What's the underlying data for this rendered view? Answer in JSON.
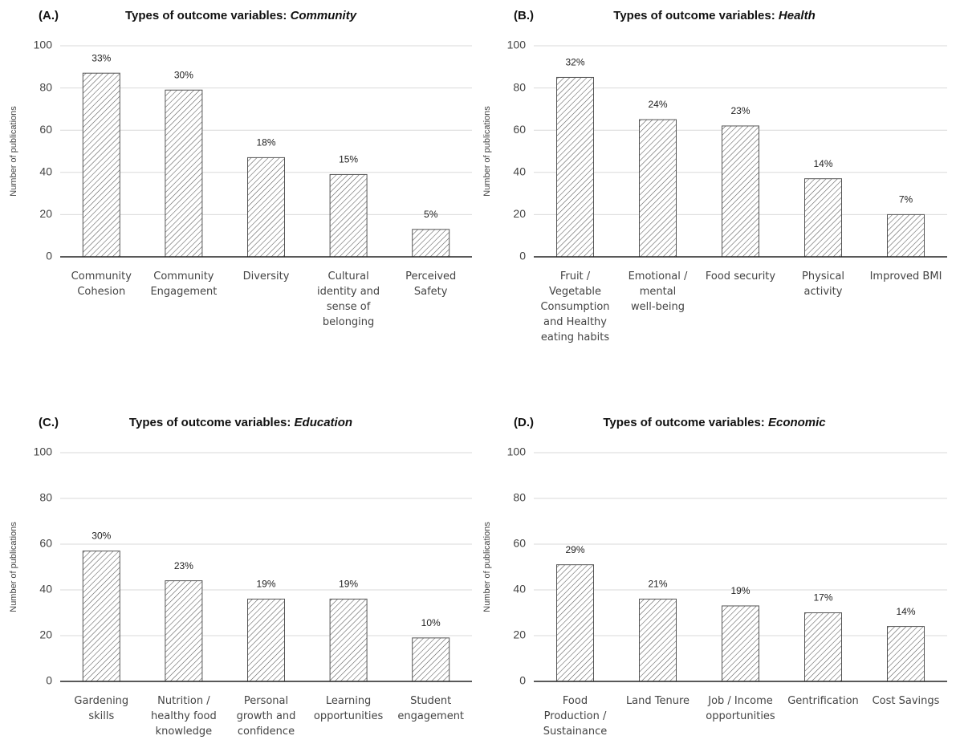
{
  "chart_data": [
    {
      "type": "bar",
      "panel": "(A.)",
      "title": "Types of outcome variables:",
      "title_emphasis": "Community",
      "ylabel": "Number of publications",
      "categories": [
        "Community Cohesion",
        "Community Engagement",
        "Diversity",
        "Cultural identity and sense of belonging",
        "Perceived Safety"
      ],
      "values": [
        87,
        79,
        47,
        39,
        13
      ],
      "share_labels": [
        "33%",
        "30%",
        "18%",
        "15%",
        "5%"
      ],
      "ylim": [
        0,
        100
      ],
      "yticks": [
        0,
        20,
        40,
        60,
        80,
        100
      ],
      "grid": true,
      "color": "#555555"
    },
    {
      "type": "bar",
      "panel": "(B.)",
      "title": "Types of outcome variables:",
      "title_emphasis": "Health",
      "ylabel": "Number of publications",
      "categories": [
        "Fruit / Vegetable Consumption and Healthy eating habits",
        "Emotional / mental well-being",
        "Food security",
        "Physical activity",
        "Improved BMI"
      ],
      "values": [
        85,
        65,
        62,
        37,
        20
      ],
      "share_labels": [
        "32%",
        "24%",
        "23%",
        "14%",
        "7%"
      ],
      "ylim": [
        0,
        100
      ],
      "yticks": [
        0,
        20,
        40,
        60,
        80,
        100
      ],
      "grid": true,
      "color": "#555555"
    },
    {
      "type": "bar",
      "panel": "(C.)",
      "title": "Types of outcome variables:",
      "title_emphasis": "Education",
      "ylabel": "Number of publications",
      "categories": [
        "Gardening skills",
        "Nutrition / healthy food knowledge",
        "Personal growth and confidence",
        "Learning opportunities",
        "Student engagement"
      ],
      "values": [
        57,
        44,
        36,
        36,
        19
      ],
      "share_labels": [
        "30%",
        "23%",
        "19%",
        "19%",
        "10%"
      ],
      "ylim": [
        0,
        100
      ],
      "yticks": [
        0,
        20,
        40,
        60,
        80,
        100
      ],
      "grid": true,
      "color": "#555555"
    },
    {
      "type": "bar",
      "panel": "(D.)",
      "title": "Types of outcome variables:",
      "title_emphasis": "Economic",
      "ylabel": "Number of publications",
      "categories": [
        "Food Production / Sustainance",
        "Land Tenure",
        "Job / Income opportunities",
        "Gentrification",
        "Cost Savings"
      ],
      "values": [
        51,
        36,
        33,
        30,
        24
      ],
      "share_labels": [
        "29%",
        "21%",
        "19%",
        "17%",
        "14%"
      ],
      "ylim": [
        0,
        100
      ],
      "yticks": [
        0,
        20,
        40,
        60,
        80,
        100
      ],
      "grid": true,
      "color": "#555555"
    }
  ]
}
